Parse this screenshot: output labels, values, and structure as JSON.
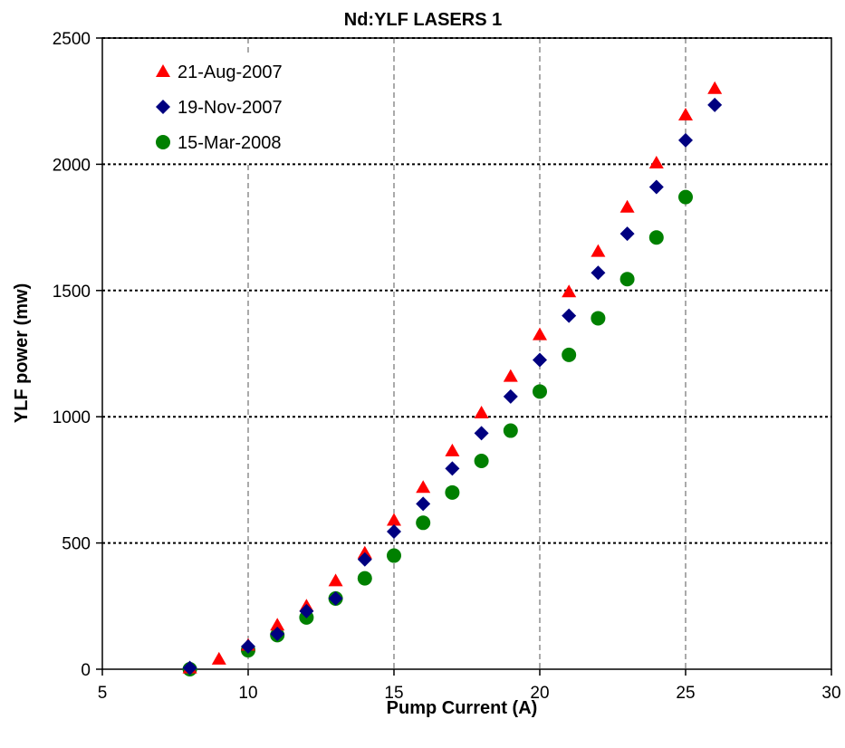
{
  "chart_data": {
    "type": "scatter",
    "title": "Nd:YLF LASERS 1",
    "xlabel": "Pump Current (A)",
    "ylabel": "YLF power (mw)",
    "xlim": [
      5,
      30
    ],
    "ylim": [
      0,
      2500
    ],
    "xticks": [
      5,
      10,
      15,
      20,
      25,
      30
    ],
    "yticks": [
      0,
      500,
      1000,
      1500,
      2000,
      2500
    ],
    "grid": true,
    "legend_position": "top-left",
    "series": [
      {
        "name": "21-Aug-2007",
        "marker": "triangle",
        "color": "#ff0000",
        "points": [
          [
            8,
            5
          ],
          [
            9,
            40
          ],
          [
            10,
            95
          ],
          [
            11,
            175
          ],
          [
            12,
            250
          ],
          [
            13,
            350
          ],
          [
            14,
            460
          ],
          [
            15,
            590
          ],
          [
            16,
            720
          ],
          [
            17,
            865
          ],
          [
            18,
            1015
          ],
          [
            19,
            1160
          ],
          [
            20,
            1325
          ],
          [
            21,
            1495
          ],
          [
            22,
            1655
          ],
          [
            23,
            1830
          ],
          [
            24,
            2005
          ],
          [
            25,
            2195
          ],
          [
            26,
            2300
          ]
        ]
      },
      {
        "name": "19-Nov-2007",
        "marker": "diamond",
        "color": "#000080",
        "points": [
          [
            8,
            5
          ],
          [
            10,
            90
          ],
          [
            11,
            140
          ],
          [
            12,
            230
          ],
          [
            13,
            280
          ],
          [
            14,
            435
          ],
          [
            15,
            545
          ],
          [
            16,
            655
          ],
          [
            17,
            795
          ],
          [
            18,
            935
          ],
          [
            19,
            1080
          ],
          [
            20,
            1225
          ],
          [
            21,
            1400
          ],
          [
            22,
            1570
          ],
          [
            23,
            1725
          ],
          [
            24,
            1910
          ],
          [
            25,
            2095
          ],
          [
            26,
            2235
          ]
        ]
      },
      {
        "name": "15-Mar-2008",
        "marker": "circle",
        "color": "#008000",
        "points": [
          [
            8,
            0
          ],
          [
            10,
            75
          ],
          [
            11,
            135
          ],
          [
            12,
            205
          ],
          [
            13,
            280
          ],
          [
            14,
            360
          ],
          [
            15,
            450
          ],
          [
            16,
            580
          ],
          [
            17,
            700
          ],
          [
            18,
            825
          ],
          [
            19,
            945
          ],
          [
            20,
            1100
          ],
          [
            21,
            1245
          ],
          [
            22,
            1390
          ],
          [
            23,
            1545
          ],
          [
            24,
            1710
          ],
          [
            25,
            1870
          ]
        ]
      }
    ]
  }
}
